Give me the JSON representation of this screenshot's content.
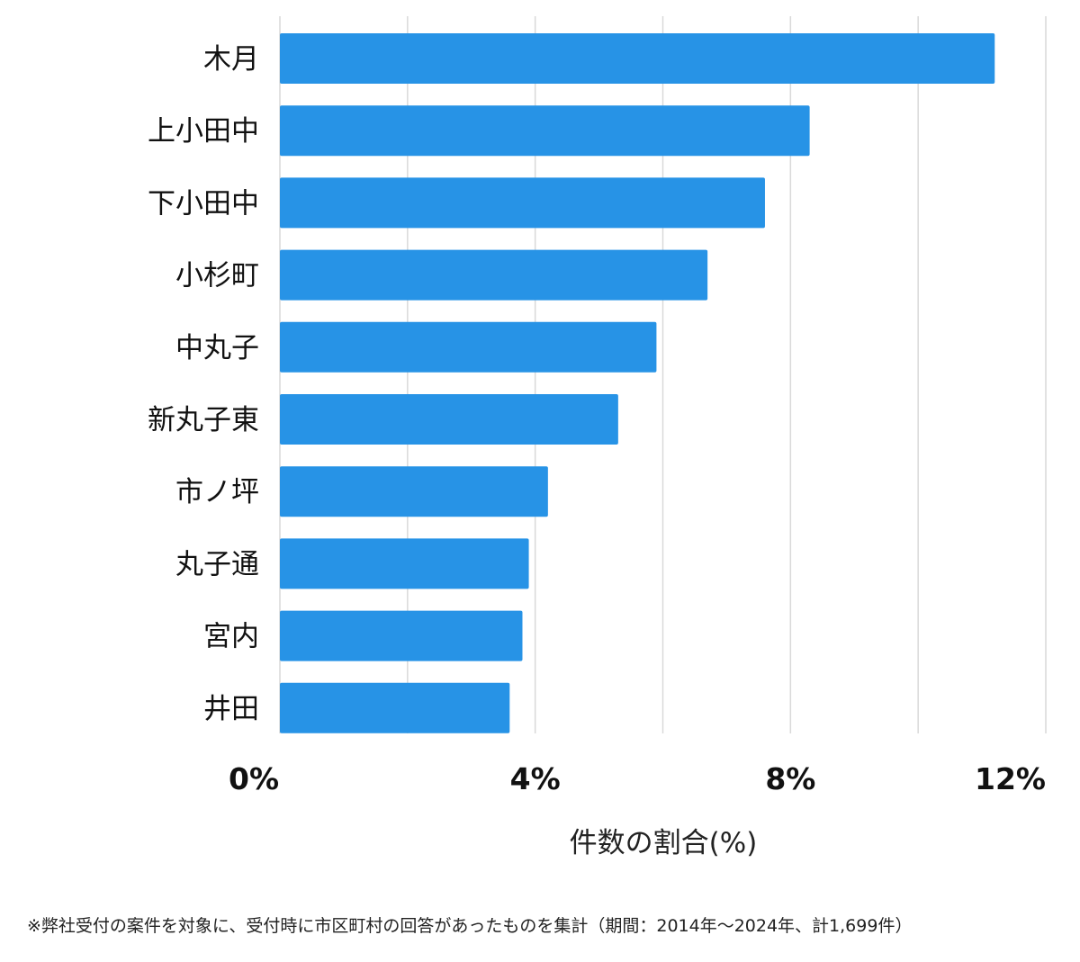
{
  "chart_data": {
    "type": "bar",
    "orientation": "horizontal",
    "categories": [
      "木月",
      "上小田中",
      "下小田中",
      "小杉町",
      "中丸子",
      "新丸子東",
      "市ノ坪",
      "丸子通",
      "宮内",
      "井田"
    ],
    "values": [
      11.2,
      8.3,
      7.6,
      6.7,
      5.9,
      5.3,
      4.2,
      3.9,
      3.8,
      3.6
    ],
    "x_ticks": [
      "0%",
      "4%",
      "8%",
      "12%"
    ],
    "x_tick_values": [
      0,
      4,
      8,
      12
    ],
    "xlim": [
      0,
      12
    ],
    "grid_step": 2,
    "grid": true,
    "xlabel": "件数の割合(%)",
    "bar_color": "#2793e6",
    "grid_color": "#d9d9d9"
  },
  "footnote": "※弊社受付の案件を対象に、受付時に市区町村の回答があったものを集計（期間：2014年～2024年、計1,699件）"
}
